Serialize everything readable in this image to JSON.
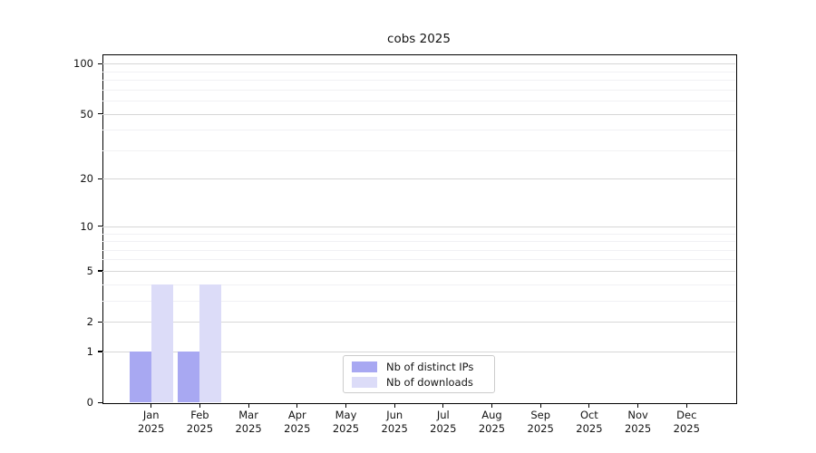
{
  "figure": {
    "background": "#ffffff"
  },
  "chart_data": {
    "type": "bar",
    "title": "cobs 2025",
    "x_tick_months": [
      "Jan",
      "Feb",
      "Mar",
      "Apr",
      "May",
      "Jun",
      "Jul",
      "Aug",
      "Sep",
      "Oct",
      "Nov",
      "Dec"
    ],
    "x_tick_year": "2025",
    "series": [
      {
        "name": "Nb of distinct IPs",
        "color": "#a8a8f2",
        "values": [
          1,
          1,
          0,
          0,
          0,
          0,
          0,
          0,
          0,
          0,
          0,
          0
        ]
      },
      {
        "name": "Nb of downloads",
        "color": "#dcdcf8",
        "values": [
          4,
          4,
          0,
          0,
          0,
          0,
          0,
          0,
          0,
          0,
          0,
          0
        ]
      }
    ],
    "y_scale": "log1p",
    "ylim": [
      0,
      113.6
    ],
    "y_major_ticks": [
      0,
      1,
      2,
      5,
      10,
      20,
      50,
      100
    ],
    "y_minor_ticks": [
      3,
      4,
      6,
      7,
      8,
      9,
      30,
      40,
      60,
      70,
      80,
      90
    ],
    "grid": "horizontal",
    "legend": {
      "position": "lower center",
      "entries": [
        "Nb of distinct IPs",
        "Nb of downloads"
      ]
    }
  },
  "colors": {
    "major_grid": "#d7d7d7",
    "minor_grid": "#f1f1f4",
    "spine": "#000000",
    "text": "#141414",
    "legend_border": "#cccccc"
  }
}
